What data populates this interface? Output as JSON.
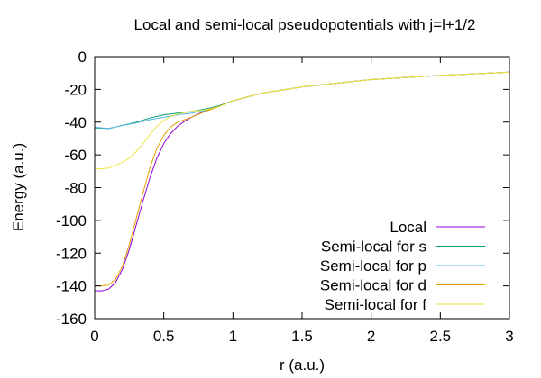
{
  "chart_data": {
    "type": "line",
    "title": "Local and semi-local pseudopotentials with j=l+1/2",
    "xlabel": "r (a.u.)",
    "ylabel": "Energy (a.u.)",
    "xlim": [
      0,
      3
    ],
    "ylim": [
      -160,
      0
    ],
    "xticks": [
      0,
      0.5,
      1,
      1.5,
      2,
      2.5,
      3
    ],
    "xtick_labels": [
      "0",
      "0.5",
      "1",
      "1.5",
      "2",
      "2.5",
      "3"
    ],
    "yticks": [
      0,
      -20,
      -40,
      -60,
      -80,
      -100,
      -120,
      -140,
      -160
    ],
    "ytick_labels": [
      "0",
      "-20",
      "-40",
      "-60",
      "-80",
      "-100",
      "-120",
      "-140",
      "-160"
    ],
    "grid": false,
    "legend_position": "bottom-right",
    "series": [
      {
        "name": "Local",
        "color": "#9400d3",
        "x": [
          0,
          0.05,
          0.1,
          0.15,
          0.2,
          0.25,
          0.3,
          0.35,
          0.4,
          0.45,
          0.5,
          0.55,
          0.6,
          0.65,
          0.7,
          0.8,
          0.9,
          1.0,
          1.2,
          1.5,
          2.0,
          2.5,
          3.0
        ],
        "y": [
          -143,
          -143,
          -142,
          -138,
          -130,
          -118,
          -103,
          -88,
          -74,
          -62,
          -53,
          -47,
          -42.5,
          -39.5,
          -37,
          -33,
          -30,
          -27,
          -22.5,
          -18.5,
          -14,
          -11.5,
          -9.5
        ]
      },
      {
        "name": "Semi-local for s",
        "color": "#009e73",
        "x": [
          0,
          0.05,
          0.1,
          0.15,
          0.2,
          0.3,
          0.4,
          0.5,
          0.6,
          0.7,
          0.8,
          0.9,
          1.0,
          1.2,
          1.5,
          2.0,
          2.5,
          3.0
        ],
        "y": [
          -43.5,
          -43.7,
          -44,
          -43,
          -42,
          -40,
          -37.5,
          -35.5,
          -34.5,
          -33.5,
          -32,
          -30,
          -27,
          -22.5,
          -18.5,
          -14,
          -11.5,
          -9.5
        ]
      },
      {
        "name": "Semi-local for p",
        "color": "#56b4e9",
        "x": [
          0,
          0.05,
          0.1,
          0.15,
          0.2,
          0.3,
          0.4,
          0.5,
          0.6,
          0.7,
          0.8,
          0.9,
          1.0,
          1.2,
          1.5,
          2.0,
          2.5,
          3.0
        ],
        "y": [
          -43,
          -43.5,
          -43.8,
          -43,
          -42,
          -40.5,
          -38.5,
          -37,
          -35.5,
          -34.5,
          -33,
          -30.5,
          -27,
          -22.5,
          -18.5,
          -14,
          -11.5,
          -9.5
        ]
      },
      {
        "name": "Semi-local for d",
        "color": "#e69f00",
        "x": [
          0,
          0.05,
          0.1,
          0.15,
          0.2,
          0.25,
          0.3,
          0.35,
          0.4,
          0.45,
          0.5,
          0.55,
          0.6,
          0.65,
          0.7,
          0.8,
          0.9,
          1.0,
          1.2,
          1.5,
          2.0,
          2.5,
          3.0
        ],
        "y": [
          -140,
          -140,
          -139.5,
          -136,
          -128,
          -115,
          -99,
          -83,
          -68,
          -56,
          -48,
          -43,
          -40,
          -38.5,
          -37,
          -33.5,
          -30.5,
          -27,
          -22.5,
          -18.5,
          -14,
          -11.5,
          -9.5
        ]
      },
      {
        "name": "Semi-local for f",
        "color": "#f0e442",
        "x": [
          0,
          0.05,
          0.1,
          0.15,
          0.2,
          0.25,
          0.3,
          0.35,
          0.4,
          0.45,
          0.5,
          0.55,
          0.6,
          0.7,
          0.8,
          0.9,
          1.0,
          1.2,
          1.5,
          2.0,
          2.5,
          3.0
        ],
        "y": [
          -68.5,
          -68.5,
          -68,
          -66.5,
          -64.5,
          -62,
          -58,
          -53,
          -47.5,
          -42.5,
          -39,
          -36.5,
          -35,
          -33.5,
          -32.5,
          -30.5,
          -27,
          -22.5,
          -18.5,
          -14,
          -11.5,
          -9.5
        ]
      }
    ]
  }
}
